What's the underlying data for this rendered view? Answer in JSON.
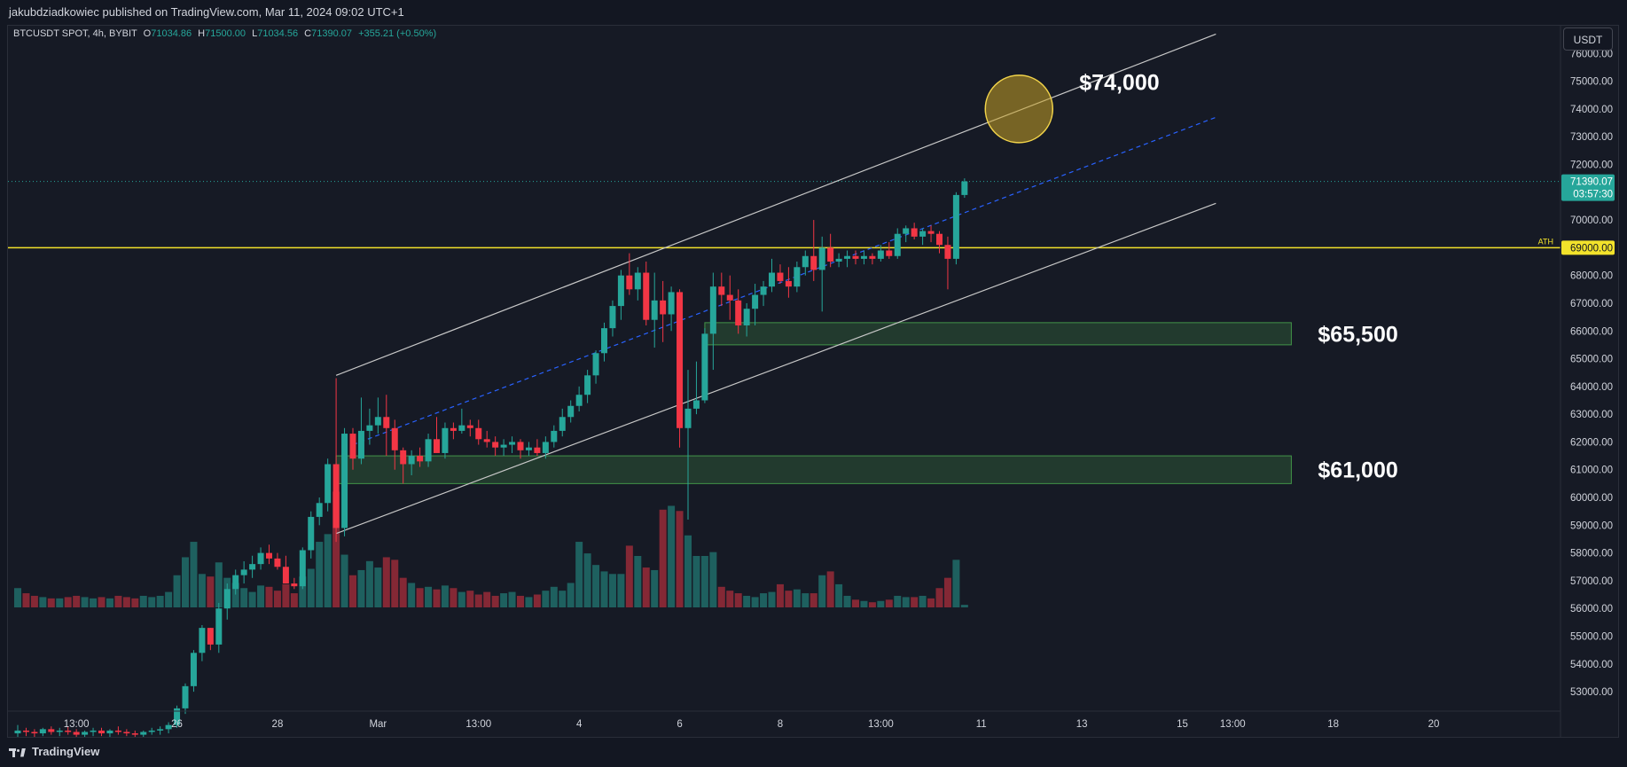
{
  "header": {
    "published_by": "jakubdziadkowiec published on TradingView.com, Mar 11, 2024 09:02 UTC+1"
  },
  "legend": {
    "symbol": "BTCUSDT SPOT, 4h, BYBIT",
    "o_label": "O",
    "o_value": "71034.86",
    "h_label": "H",
    "h_value": "71500.00",
    "l_label": "L",
    "l_value": "71034.56",
    "c_label": "C",
    "c_value": "71390.07",
    "change": "+355.21 (+0.50%)"
  },
  "currency_button": "USDT",
  "footer": {
    "brand": "TradingView"
  },
  "colors": {
    "up": "#26a69a",
    "down": "#f23645",
    "ath": "#f2e22b",
    "zone": "#4caf50",
    "channel": "#c8c8c8",
    "midline": "#2962ff",
    "target": "#c9a227"
  },
  "chart_data": {
    "type": "candlestick",
    "symbol": "BTCUSDT",
    "timeframe": "4h",
    "ylim": [
      52300,
      77000
    ],
    "y_ticks": [
      "76000.00",
      "75000.00",
      "74000.00",
      "73000.00",
      "72000.00",
      "71000.00",
      "70000.00",
      "69000.00",
      "68000.00",
      "67000.00",
      "66000.00",
      "65000.00",
      "64000.00",
      "63000.00",
      "62000.00",
      "61000.00",
      "60000.00",
      "59000.00",
      "58000.00",
      "57000.00",
      "56000.00",
      "55000.00",
      "54000.00",
      "53000.00"
    ],
    "x_ticks": [
      {
        "label": "13:00",
        "i": 7
      },
      {
        "label": "26",
        "i": 19
      },
      {
        "label": "28",
        "i": 31
      },
      {
        "label": "Mar",
        "i": 43
      },
      {
        "label": "13:00",
        "i": 55
      },
      {
        "label": "4",
        "i": 67
      },
      {
        "label": "6",
        "i": 79
      },
      {
        "label": "8",
        "i": 91
      },
      {
        "label": "13:00",
        "i": 103
      },
      {
        "label": "11",
        "i": 115
      },
      {
        "label": "13",
        "i": 127
      },
      {
        "label": "15",
        "i": 139
      },
      {
        "label": "13:00",
        "i": 145
      },
      {
        "label": "18",
        "i": 157
      },
      {
        "label": "20",
        "i": 169
      }
    ],
    "candles": [
      [
        51500,
        51800,
        51300,
        51600,
        1.5
      ],
      [
        51600,
        51700,
        51400,
        51550,
        1.1
      ],
      [
        51550,
        51650,
        51350,
        51500,
        0.9
      ],
      [
        51500,
        51700,
        51400,
        51650,
        0.8
      ],
      [
        51650,
        51750,
        51450,
        51550,
        0.7
      ],
      [
        51550,
        51700,
        51400,
        51600,
        0.7
      ],
      [
        51600,
        51750,
        51450,
        51550,
        0.8
      ],
      [
        51550,
        51650,
        51300,
        51450,
        0.9
      ],
      [
        51450,
        51600,
        51350,
        51550,
        0.8
      ],
      [
        51550,
        51700,
        51400,
        51600,
        0.7
      ],
      [
        51600,
        51700,
        51400,
        51500,
        0.8
      ],
      [
        51500,
        51650,
        51350,
        51600,
        0.7
      ],
      [
        51600,
        51750,
        51450,
        51550,
        0.9
      ],
      [
        51550,
        51650,
        51400,
        51500,
        0.8
      ],
      [
        51500,
        51600,
        51300,
        51450,
        0.7
      ],
      [
        51450,
        51600,
        51350,
        51550,
        0.9
      ],
      [
        51550,
        51700,
        51450,
        51600,
        0.8
      ],
      [
        51600,
        51750,
        51450,
        51650,
        0.9
      ],
      [
        51650,
        51900,
        51500,
        51800,
        1.2
      ],
      [
        51800,
        52500,
        51700,
        52400,
        2.5
      ],
      [
        52400,
        53300,
        52200,
        53200,
        3.9
      ],
      [
        53200,
        54500,
        53000,
        54400,
        5.1
      ],
      [
        54400,
        55400,
        54100,
        55300,
        2.6
      ],
      [
        55300,
        55300,
        54500,
        54700,
        2.4
      ],
      [
        54700,
        56200,
        54400,
        56000,
        3.5
      ],
      [
        56000,
        56900,
        55600,
        56700,
        2.3
      ],
      [
        56700,
        57400,
        56500,
        57200,
        1.9
      ],
      [
        57200,
        57700,
        56900,
        57400,
        1.5
      ],
      [
        57400,
        57900,
        57100,
        57600,
        1.2
      ],
      [
        57600,
        58200,
        57400,
        58000,
        1.7
      ],
      [
        58000,
        58300,
        57600,
        57800,
        1.6
      ],
      [
        57800,
        58000,
        57400,
        57500,
        1.3
      ],
      [
        57500,
        57900,
        56900,
        56900,
        1.8
      ],
      [
        56900,
        57100,
        56700,
        56800,
        1.1
      ],
      [
        56800,
        58200,
        56700,
        58100,
        2.4
      ],
      [
        58100,
        59500,
        57800,
        59300,
        3.0
      ],
      [
        59300,
        60000,
        59000,
        59800,
        5.1
      ],
      [
        59800,
        61400,
        59500,
        61200,
        5.7
      ],
      [
        61200,
        64300,
        58400,
        58900,
        9.0
      ],
      [
        58900,
        62500,
        58600,
        62300,
        4.1
      ],
      [
        62300,
        62500,
        61000,
        61400,
        2.5
      ],
      [
        61400,
        63600,
        61200,
        62400,
        2.9
      ],
      [
        62400,
        63200,
        61900,
        62600,
        3.6
      ],
      [
        62600,
        63600,
        62300,
        62900,
        3.1
      ],
      [
        62900,
        63700,
        61500,
        62500,
        3.9
      ],
      [
        62500,
        62800,
        61000,
        61700,
        3.7
      ],
      [
        61700,
        61800,
        60500,
        61200,
        2.3
      ],
      [
        61200,
        61700,
        60800,
        61500,
        1.9
      ],
      [
        61500,
        61800,
        61100,
        61300,
        1.5
      ],
      [
        61300,
        62300,
        61100,
        62100,
        1.6
      ],
      [
        62100,
        62900,
        61700,
        61600,
        1.4
      ],
      [
        61600,
        62700,
        61400,
        62500,
        1.7
      ],
      [
        62500,
        62700,
        62100,
        62400,
        1.5
      ],
      [
        62400,
        63200,
        62300,
        62600,
        1.2
      ],
      [
        62600,
        62800,
        62200,
        62500,
        1.3
      ],
      [
        62500,
        62800,
        61900,
        62100,
        1.0
      ],
      [
        62100,
        62400,
        61800,
        62000,
        1.2
      ],
      [
        62000,
        62200,
        61500,
        61800,
        0.9
      ],
      [
        61800,
        62100,
        61500,
        61900,
        1.1
      ],
      [
        61900,
        62200,
        61600,
        62000,
        1.2
      ],
      [
        62000,
        62100,
        61400,
        61700,
        0.9
      ],
      [
        61700,
        62000,
        61500,
        61800,
        0.8
      ],
      [
        61800,
        62100,
        61500,
        61600,
        1.0
      ],
      [
        61600,
        62200,
        61400,
        62000,
        1.3
      ],
      [
        62000,
        62600,
        61800,
        62400,
        1.6
      ],
      [
        62400,
        63200,
        62200,
        62900,
        1.3
      ],
      [
        62900,
        63500,
        62700,
        63300,
        1.9
      ],
      [
        63300,
        64000,
        63100,
        63700,
        5.1
      ],
      [
        63700,
        64600,
        63400,
        64400,
        4.2
      ],
      [
        64400,
        65300,
        64100,
        65200,
        3.3
      ],
      [
        65200,
        66300,
        64900,
        66100,
        2.8
      ],
      [
        66100,
        67100,
        65800,
        66900,
        2.6
      ],
      [
        66900,
        68200,
        66400,
        68000,
        2.6
      ],
      [
        68000,
        68800,
        67300,
        67500,
        4.8
      ],
      [
        67500,
        68300,
        67100,
        68100,
        4.0
      ],
      [
        68100,
        68500,
        66200,
        66400,
        3.1
      ],
      [
        66400,
        68100,
        65400,
        67100,
        2.9
      ],
      [
        67100,
        67800,
        65600,
        66600,
        7.6
      ],
      [
        66600,
        67600,
        66000,
        67400,
        7.9
      ],
      [
        67400,
        67500,
        61800,
        62500,
        7.5
      ],
      [
        62500,
        64600,
        59200,
        63200,
        5.6
      ],
      [
        63200,
        64900,
        63000,
        63500,
        4.0
      ],
      [
        63500,
        66100,
        63400,
        65900,
        4.0
      ],
      [
        65900,
        68100,
        64600,
        67600,
        4.3
      ],
      [
        67600,
        68100,
        66900,
        67300,
        1.6
      ],
      [
        67300,
        68000,
        66400,
        67100,
        1.3
      ],
      [
        67100,
        67500,
        65900,
        66200,
        1.1
      ],
      [
        66200,
        67000,
        65800,
        66800,
        0.9
      ],
      [
        66800,
        67700,
        66200,
        67300,
        0.8
      ],
      [
        67300,
        67800,
        66900,
        67600,
        1.1
      ],
      [
        67600,
        68600,
        67400,
        68100,
        1.2
      ],
      [
        68100,
        68400,
        67700,
        67800,
        1.8
      ],
      [
        67800,
        68300,
        67200,
        67600,
        1.3
      ],
      [
        67600,
        68500,
        67400,
        68300,
        1.4
      ],
      [
        68300,
        68900,
        68000,
        68700,
        1.1
      ],
      [
        68700,
        70000,
        67800,
        68200,
        1.1
      ],
      [
        68200,
        69400,
        66700,
        69000,
        2.5
      ],
      [
        69000,
        69500,
        68300,
        68500,
        2.8
      ],
      [
        68500,
        68800,
        68300,
        68600,
        1.8
      ],
      [
        68600,
        68900,
        68300,
        68700,
        0.9
      ],
      [
        68700,
        68900,
        68400,
        68600,
        0.6
      ],
      [
        68600,
        68900,
        68400,
        68700,
        0.5
      ],
      [
        68700,
        68800,
        68400,
        68600,
        0.4
      ],
      [
        68600,
        69100,
        68500,
        68900,
        0.5
      ],
      [
        68900,
        69200,
        68600,
        68700,
        0.6
      ],
      [
        68700,
        69700,
        68600,
        69500,
        0.9
      ],
      [
        69500,
        69800,
        69200,
        69700,
        0.8
      ],
      [
        69700,
        69900,
        69300,
        69400,
        0.8
      ],
      [
        69400,
        69700,
        69100,
        69600,
        0.9
      ],
      [
        69600,
        69800,
        69200,
        69500,
        0.7
      ],
      [
        69500,
        69600,
        68800,
        69100,
        1.5
      ],
      [
        69100,
        69400,
        67500,
        68600,
        2.3
      ],
      [
        68600,
        71000,
        68400,
        70900,
        3.7
      ],
      [
        70900,
        71500,
        70800,
        71390,
        0.2
      ]
    ],
    "channel": {
      "upper": [
        [
          38,
          64400
        ],
        [
          143,
          76700
        ]
      ],
      "lower": [
        [
          38,
          58700
        ],
        [
          143,
          70600
        ]
      ],
      "mid": [
        [
          40,
          61900
        ],
        [
          143,
          73700
        ]
      ]
    },
    "ath": {
      "label": "ATH",
      "value": 69000,
      "price_label": "69000.00"
    },
    "last_price": {
      "value": 71390.07,
      "price_label": "71390.07",
      "countdown": "03:57:30"
    },
    "zones": [
      {
        "label": "$65,500",
        "low": 65500,
        "high": 66300,
        "from": 82,
        "to": 152
      },
      {
        "label": "$61,000",
        "low": 60500,
        "high": 61500,
        "from": 38,
        "to": 152
      }
    ],
    "target": {
      "label": "$74,000",
      "value": 74000,
      "center_i": 119.5
    }
  }
}
